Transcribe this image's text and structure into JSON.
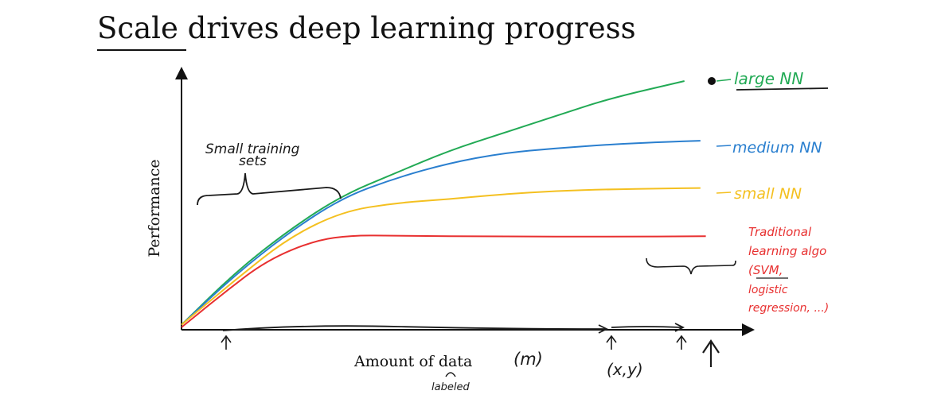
{
  "slide": {
    "title_underlined": "Scale",
    "title_rest": " drives deep learning progress"
  },
  "chart_data": {
    "type": "line",
    "xlabel": "Amount of data",
    "ylabel": "Performance",
    "xlim": [
      0,
      100
    ],
    "ylim": [
      0,
      100
    ],
    "grid": false,
    "series": [
      {
        "name": "large NN",
        "color": "#22aa55",
        "points": [
          [
            0,
            2
          ],
          [
            10,
            23
          ],
          [
            20,
            40
          ],
          [
            30,
            54
          ],
          [
            40,
            63
          ],
          [
            50,
            72
          ],
          [
            60,
            79
          ],
          [
            70,
            86
          ],
          [
            80,
            93
          ],
          [
            94,
            100
          ]
        ]
      },
      {
        "name": "medium NN",
        "color": "#2a7fcf",
        "points": [
          [
            0,
            2
          ],
          [
            10,
            22
          ],
          [
            20,
            39
          ],
          [
            30,
            53
          ],
          [
            40,
            61
          ],
          [
            50,
            67
          ],
          [
            60,
            71
          ],
          [
            70,
            73
          ],
          [
            80,
            74.5
          ],
          [
            90,
            75.5
          ],
          [
            97,
            76
          ]
        ]
      },
      {
        "name": "small NN",
        "color": "#f4c020",
        "points": [
          [
            0,
            2
          ],
          [
            10,
            20
          ],
          [
            20,
            37
          ],
          [
            30,
            47.5
          ],
          [
            40,
            51
          ],
          [
            50,
            52.5
          ],
          [
            60,
            54.5
          ],
          [
            70,
            55.8
          ],
          [
            80,
            56.5
          ],
          [
            90,
            56.8
          ],
          [
            97,
            57
          ]
        ]
      },
      {
        "name": "Traditional learning algo",
        "color": "#e83030",
        "points": [
          [
            0,
            1
          ],
          [
            8,
            15
          ],
          [
            16,
            28
          ],
          [
            25,
            36
          ],
          [
            32,
            38
          ],
          [
            40,
            37.8
          ],
          [
            60,
            37.5
          ],
          [
            80,
            37.4
          ],
          [
            98,
            37.6
          ]
        ]
      }
    ],
    "labels": {
      "large": "large NN",
      "medium": "medium NN",
      "small": "small NN",
      "trad_1": "Traditional",
      "trad_2": "learning algo",
      "trad_3": "(SVM,",
      "trad_4": "logistic",
      "trad_5": "regression, ...)"
    },
    "annotations": {
      "small_sets_1": "Small training",
      "small_sets_2": "sets",
      "m": "(m)",
      "xy": "(x,y)",
      "labeled": "labeled"
    },
    "colors": {
      "axis": "#111111",
      "hand_black": "#1a1a1a"
    }
  }
}
